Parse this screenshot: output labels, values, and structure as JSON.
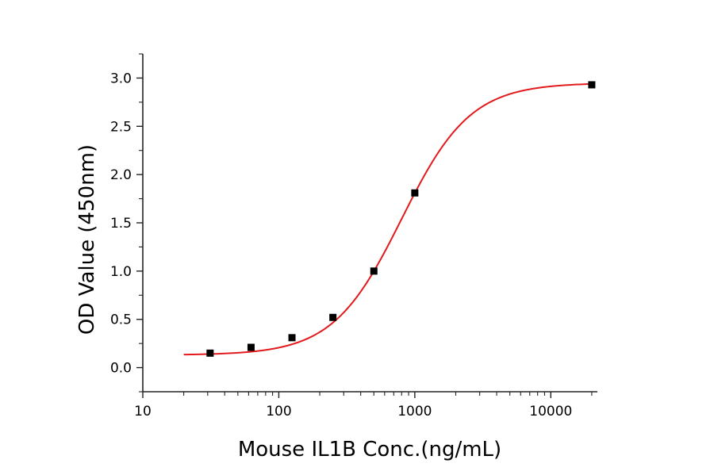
{
  "chart_data": {
    "type": "scatter",
    "title": "",
    "xlabel": "Mouse IL1B Conc.(ng/mL)",
    "ylabel": "OD Value (450nm)",
    "xscale": "log",
    "xlim": [
      10,
      22000
    ],
    "ylim": [
      -0.25,
      3.25
    ],
    "xticks": [
      "10",
      "100",
      "1000",
      "10000"
    ],
    "xtick_values": [
      10,
      100,
      1000,
      10000
    ],
    "yticks": [
      "0.0",
      "0.5",
      "1.0",
      "1.5",
      "2.0",
      "2.5",
      "3.0"
    ],
    "ytick_values": [
      0,
      0.5,
      1.0,
      1.5,
      2.0,
      2.5,
      3.0
    ],
    "grid": false,
    "legend": "none",
    "series": [
      {
        "marker": "square",
        "color": "#000000",
        "x": [
          31.25,
          62.5,
          125,
          250,
          500,
          1000,
          20000
        ],
        "y": [
          0.15,
          0.21,
          0.31,
          0.52,
          1.0,
          1.81,
          2.93
        ]
      }
    ],
    "fit_curve": {
      "type": "four-parameter logistic",
      "color": "#e31a1c",
      "x_range": [
        20,
        20000
      ],
      "bottom": 0.13,
      "top": 2.95,
      "ec50": 800,
      "hill": 1.72
    }
  }
}
